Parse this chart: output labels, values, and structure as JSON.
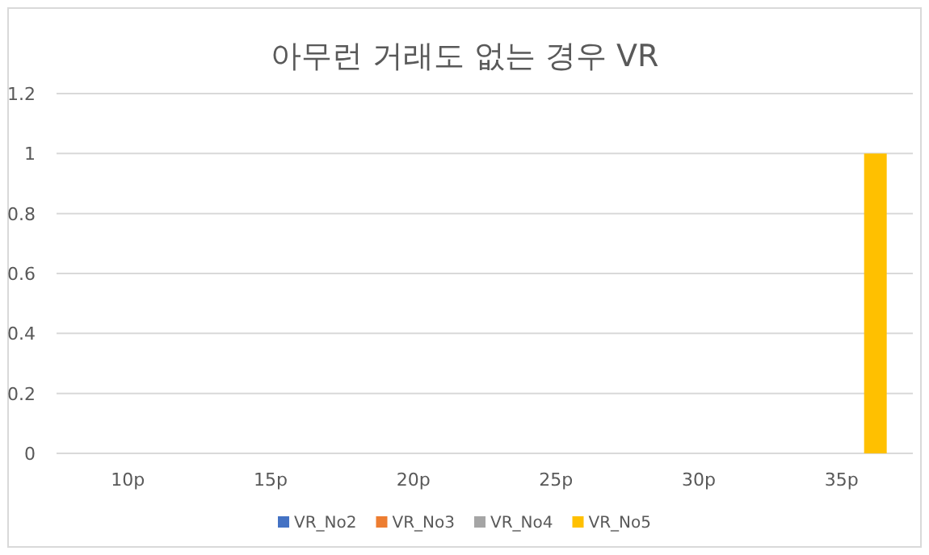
{
  "chart_data": {
    "type": "bar",
    "title": "아무런 거래도 없는 경우 VR",
    "categories": [
      "10p",
      "15p",
      "20p",
      "25p",
      "30p",
      "35p"
    ],
    "series": [
      {
        "name": "VR_No2",
        "color": "#4472c4",
        "values": [
          0,
          0,
          0,
          0,
          0,
          0
        ]
      },
      {
        "name": "VR_No3",
        "color": "#ed7d31",
        "values": [
          0,
          0,
          0,
          0,
          0,
          0
        ]
      },
      {
        "name": "VR_No4",
        "color": "#a5a5a5",
        "values": [
          0,
          0,
          0,
          0,
          0,
          0
        ]
      },
      {
        "name": "VR_No5",
        "color": "#ffc000",
        "values": [
          0,
          0,
          0,
          0,
          0,
          1
        ]
      }
    ],
    "ylim": [
      0,
      1.2
    ],
    "yticks": [
      0,
      0.2,
      0.4,
      0.6,
      0.8,
      1,
      1.2
    ],
    "grid": "y",
    "legend": "bottom"
  }
}
